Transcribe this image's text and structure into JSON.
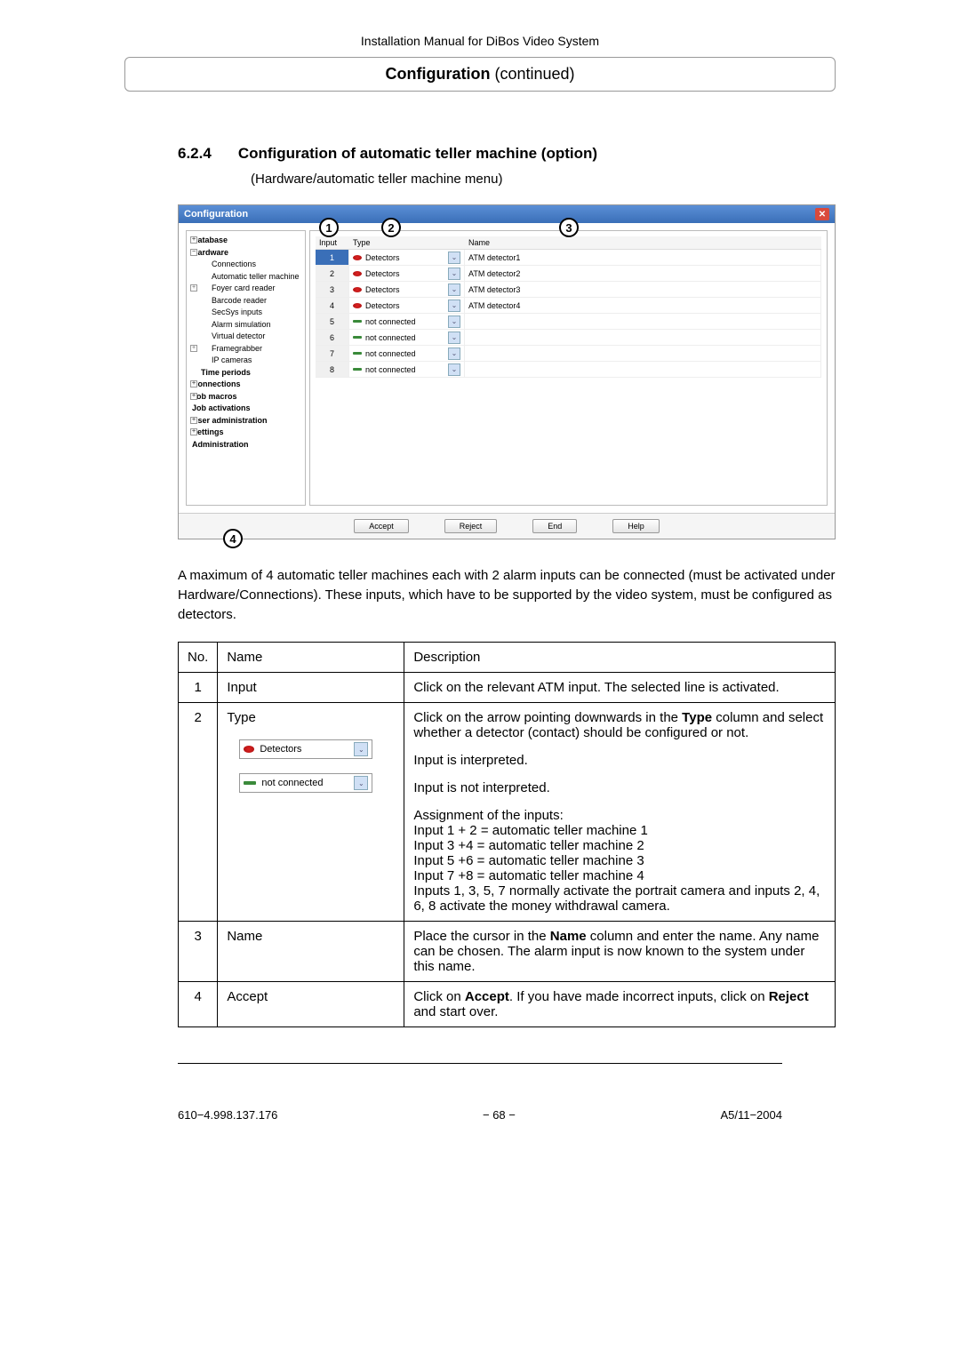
{
  "header": {
    "title": "Installation Manual for DiBos Video System"
  },
  "section_box": {
    "bold": "Configuration",
    "rest": "  (continued)"
  },
  "heading": {
    "num": "6.2.4",
    "title": "Configuration of automatic teller machine (option)",
    "sub": "(Hardware/automatic teller machine menu)"
  },
  "screenshot": {
    "title": "Configuration",
    "tree": [
      {
        "label": "Database",
        "level": 0,
        "exp": "+"
      },
      {
        "label": "Hardware",
        "level": 0,
        "exp": "−"
      },
      {
        "label": "Connections",
        "level": 2
      },
      {
        "label": "Automatic teller machine",
        "level": 2,
        "selected": true
      },
      {
        "label": "Foyer card reader",
        "level": 2,
        "exp": "+"
      },
      {
        "label": "Barcode reader",
        "level": 2
      },
      {
        "label": "SecSys inputs",
        "level": 2
      },
      {
        "label": "Alarm simulation",
        "level": 2
      },
      {
        "label": "Virtual detector",
        "level": 2
      },
      {
        "label": "Framegrabber",
        "level": 2,
        "exp": "+"
      },
      {
        "label": "IP cameras",
        "level": 2
      },
      {
        "label": "Time periods",
        "level": 1
      },
      {
        "label": "Connections",
        "level": 0,
        "exp": "+"
      },
      {
        "label": "Job macros",
        "level": 0,
        "exp": "+"
      },
      {
        "label": "Job activations",
        "level": 0
      },
      {
        "label": "User administration",
        "level": 0,
        "exp": "+"
      },
      {
        "label": "Settings",
        "level": 0,
        "exp": "+"
      },
      {
        "label": "Administration",
        "level": 0
      }
    ],
    "cols": {
      "input": "Input",
      "type": "Type",
      "name": "Name"
    },
    "rows": [
      {
        "input": "1",
        "type": "Detectors",
        "name": "ATM detector1",
        "connected": true,
        "sel": true
      },
      {
        "input": "2",
        "type": "Detectors",
        "name": "ATM detector2",
        "connected": true
      },
      {
        "input": "3",
        "type": "Detectors",
        "name": "ATM detector3",
        "connected": true
      },
      {
        "input": "4",
        "type": "Detectors",
        "name": "ATM detector4",
        "connected": true
      },
      {
        "input": "5",
        "type": "not connected",
        "name": "",
        "connected": false
      },
      {
        "input": "6",
        "type": "not connected",
        "name": "",
        "connected": false
      },
      {
        "input": "7",
        "type": "not connected",
        "name": "",
        "connected": false
      },
      {
        "input": "8",
        "type": "not connected",
        "name": "",
        "connected": false
      }
    ],
    "buttons": {
      "accept": "Accept",
      "reject": "Reject",
      "end": "End",
      "help": "Help"
    },
    "callouts": {
      "c1": "1",
      "c2": "2",
      "c3": "3",
      "c4": "4"
    }
  },
  "body_text": "A maximum of 4 automatic teller machines each with 2 alarm inputs can be connected (must be activated under Hardware/Connections). These inputs, which have to be supported by the video system, must be configured as detectors.",
  "table": {
    "head": {
      "no": "No.",
      "name": "Name",
      "desc": "Description"
    },
    "rows": [
      {
        "no": "1",
        "name": "Input",
        "desc": "Click on the relevant ATM input. The selected line is activated."
      },
      {
        "no": "2",
        "name": "Type",
        "desc_p1a": "Click on the arrow pointing downwards in the ",
        "desc_p1b": "Type",
        "desc_p1c": " column and select whether a detector (contact) should be configured or not.",
        "dd1": "Detectors",
        "dd1_desc": "Input is interpreted.",
        "dd2": "not connected",
        "dd2_desc": "Input is not interpreted.",
        "assign_head": "Assignment of the inputs:",
        "a1": "Input 1 + 2 = automatic teller machine 1",
        "a2": "Input 3 +4 = automatic teller machine 2",
        "a3": "Input 5 +6 = automatic teller machine 3",
        "a4": "Input 7 +8 = automatic teller machine 4",
        "a5": "Inputs 1, 3, 5, 7 normally activate the portrait camera and inputs 2, 4, 6, 8 activate the money withdrawal camera."
      },
      {
        "no": "3",
        "name": "Name",
        "desc_a": "Place the cursor in the ",
        "desc_b": "Name",
        "desc_c": " column and enter the name. Any name can be chosen. The alarm input is now known to the system under this name."
      },
      {
        "no": "4",
        "name": "Accept",
        "desc_a": "Click on ",
        "desc_b": "Accept",
        "desc_c": ". If you have made incorrect inputs, click on ",
        "desc_d": "Reject",
        "desc_e": " and start over."
      }
    ]
  },
  "footer": {
    "left": "610−4.998.137.176",
    "mid": "−  68  −",
    "right": "A5/11−2004"
  }
}
